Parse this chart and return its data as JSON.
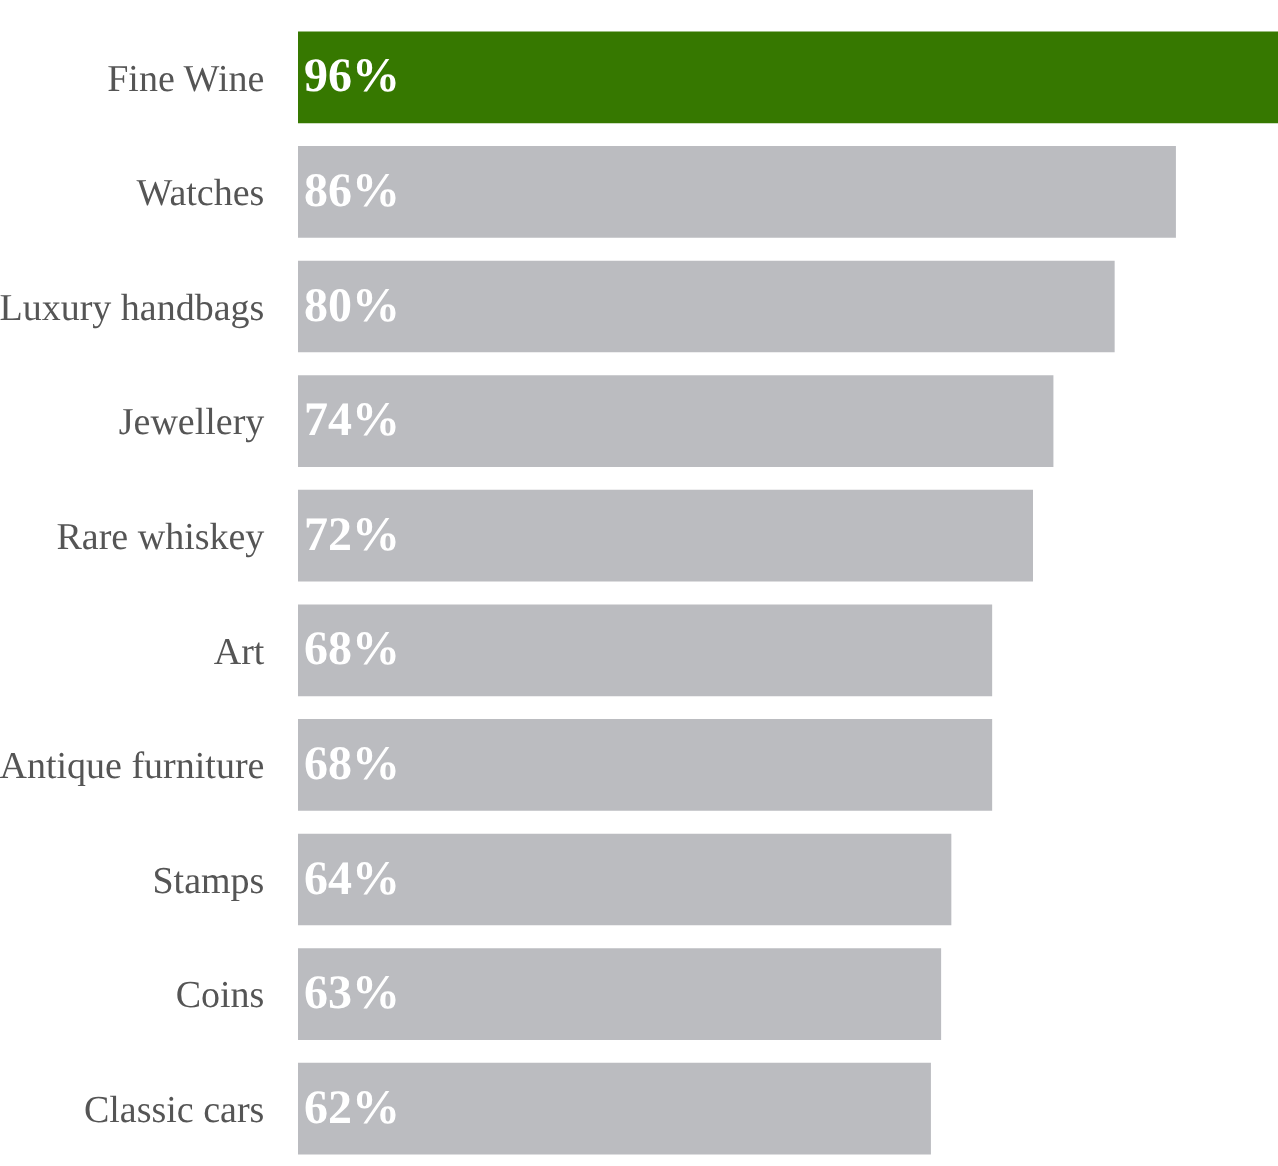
{
  "chart_data": {
    "type": "bar",
    "orientation": "horizontal",
    "categories": [
      "Fine Wine",
      "Watches",
      "Luxury handbags",
      "Jewellery",
      "Rare whiskey",
      "Art",
      "Antique furniture",
      "Stamps",
      "Coins",
      "Classic cars"
    ],
    "values": [
      96,
      86,
      80,
      74,
      72,
      68,
      68,
      64,
      63,
      62
    ],
    "value_labels": [
      "96%",
      "86%",
      "80%",
      "74%",
      "72%",
      "68%",
      "68%",
      "64%",
      "63%",
      "62%"
    ],
    "colors": [
      "#367800",
      "#bbbcc0",
      "#bbbcc0",
      "#bbbcc0",
      "#bbbcc0",
      "#bbbcc0",
      "#bbbcc0",
      "#bbbcc0",
      "#bbbcc0",
      "#bbbcc0"
    ],
    "legend": false
  }
}
